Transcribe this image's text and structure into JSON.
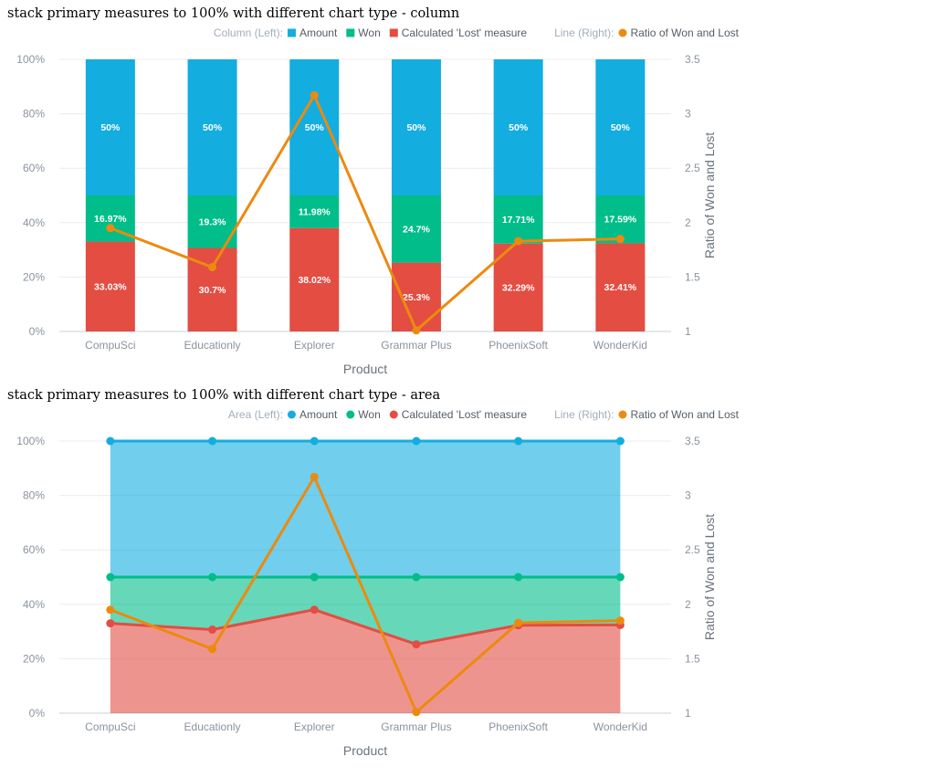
{
  "chart_data": [
    {
      "type": "bar",
      "title": "stack primary measures to 100% with different chart type - column",
      "legend": {
        "left_group_label": "Column (Left):",
        "right_group_label": "Line (Right):",
        "left_items": [
          "Amount",
          "Won",
          "Calculated 'Lost' measure"
        ],
        "right_items": [
          "Ratio of Won and Lost"
        ],
        "placement": "top-right"
      },
      "categories": [
        "CompuSci",
        "Educationly",
        "Explorer",
        "Grammar Plus",
        "PhoenixSoft",
        "WonderKid"
      ],
      "stacked_percent": true,
      "series": [
        {
          "name": "Calculated 'Lost' measure",
          "color": "#e34d42",
          "values": [
            33.03,
            30.7,
            38.02,
            25.3,
            32.29,
            32.41
          ],
          "labels": [
            "33.03%",
            "30.7%",
            "38.02%",
            "25.3%",
            "32.29%",
            "32.41%"
          ]
        },
        {
          "name": "Won",
          "color": "#00bd8a",
          "values": [
            16.97,
            19.3,
            11.98,
            24.7,
            17.71,
            17.59
          ],
          "labels": [
            "16.97%",
            "19.3%",
            "11.98%",
            "24.7%",
            "17.71%",
            "17.59%"
          ]
        },
        {
          "name": "Amount",
          "color": "#13ade0",
          "values": [
            50,
            50,
            50,
            50,
            50,
            50
          ],
          "labels": [
            "50%",
            "50%",
            "50%",
            "50%",
            "50%",
            "50%"
          ]
        }
      ],
      "line_series": {
        "name": "Ratio of Won and Lost",
        "color": "#ec8a0f",
        "axis": "right",
        "values": [
          1.95,
          1.59,
          3.17,
          1.01,
          1.83,
          1.85
        ]
      },
      "xlabel": "Product",
      "ylabel": "",
      "y2label": "Ratio of Won and Lost",
      "ylim": [
        0,
        100
      ],
      "y2lim": [
        1,
        3.5
      ],
      "yticks": [
        "0%",
        "20%",
        "40%",
        "60%",
        "80%",
        "100%"
      ],
      "y2ticks": [
        "1",
        "1.5",
        "2",
        "2.5",
        "3",
        "3.5"
      ],
      "grid": true
    },
    {
      "type": "area",
      "title": "stack primary measures to 100% with different chart type - area",
      "legend": {
        "left_group_label": "Area (Left):",
        "right_group_label": "Line (Right):",
        "left_items": [
          "Amount",
          "Won",
          "Calculated 'Lost' measure"
        ],
        "right_items": [
          "Ratio of Won and Lost"
        ],
        "placement": "top-right"
      },
      "categories": [
        "CompuSci",
        "Educationly",
        "Explorer",
        "Grammar Plus",
        "PhoenixSoft",
        "WonderKid"
      ],
      "stacked_percent": true,
      "series": [
        {
          "name": "Calculated 'Lost' measure",
          "color": "#e34d42",
          "values": [
            33.03,
            30.7,
            38.02,
            25.3,
            32.29,
            32.41
          ]
        },
        {
          "name": "Won",
          "color": "#00bd8a",
          "values": [
            16.97,
            19.3,
            11.98,
            24.7,
            17.71,
            17.59
          ]
        },
        {
          "name": "Amount",
          "color": "#13ade0",
          "values": [
            50,
            50,
            50,
            50,
            50,
            50
          ]
        }
      ],
      "line_series": {
        "name": "Ratio of Won and Lost",
        "color": "#ec8a0f",
        "axis": "right",
        "values": [
          1.95,
          1.59,
          3.17,
          1.01,
          1.83,
          1.85
        ]
      },
      "xlabel": "Product",
      "ylabel": "",
      "y2label": "Ratio of Won and Lost",
      "ylim": [
        0,
        100
      ],
      "y2lim": [
        1,
        3.5
      ],
      "yticks": [
        "0%",
        "20%",
        "40%",
        "60%",
        "80%",
        "100%"
      ],
      "y2ticks": [
        "1",
        "1.5",
        "2",
        "2.5",
        "3",
        "3.5"
      ],
      "grid": true
    }
  ]
}
